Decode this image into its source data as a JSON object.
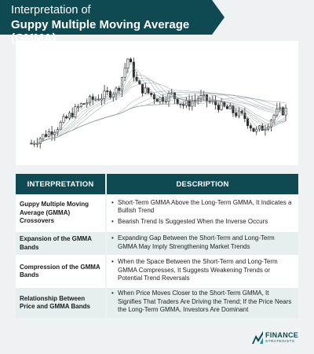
{
  "header": {
    "title_line1": "Interpretation of",
    "title_line2": "Guppy Multiple Moving Average (GMMA)",
    "bg_color": "#0f4a53"
  },
  "table": {
    "headers": [
      "INTERPRETATION",
      "DESCRIPTION"
    ],
    "rows": [
      {
        "interpretation": "Guppy Multiple Moving Average (GMMA) Crossovers",
        "bullets": [
          "Short-Term GMMA Above the Long-Term GMMA, It Indicates a Bullish Trend",
          "Bearish Trend Is Suggested When the Inverse Occurs"
        ]
      },
      {
        "interpretation": "Expansion of the GMMA Bands",
        "bullets": [
          "Expanding Gap Between the Short-Term and Long-Term GMMA May Imply Strengthening Market Trends"
        ]
      },
      {
        "interpretation": "Compression of the GMMA Bands",
        "bullets": [
          "When the Space Between the Short-Term and Long-Term GMMA Compresses, It Suggests Weakening Trends or Potential Trend Reversals"
        ]
      },
      {
        "interpretation": "Relationship Between Price and GMMA Bands",
        "bullets": [
          "When Price Moves Closer to the Short-Term GMMA, It Signifies That Traders Are Driving the Trend; If the Price Nears the Long-Term GMMA, Investors Are Dominant"
        ]
      }
    ]
  },
  "logo": {
    "word": "FINANCE",
    "sub": "STRATEGISTS",
    "icon": "finance-strategists-logo-icon"
  },
  "chart": {
    "icon": "candlestick-chart-illustration",
    "candle_color": "#2b2b2b",
    "line_color": "#8a969a"
  }
}
